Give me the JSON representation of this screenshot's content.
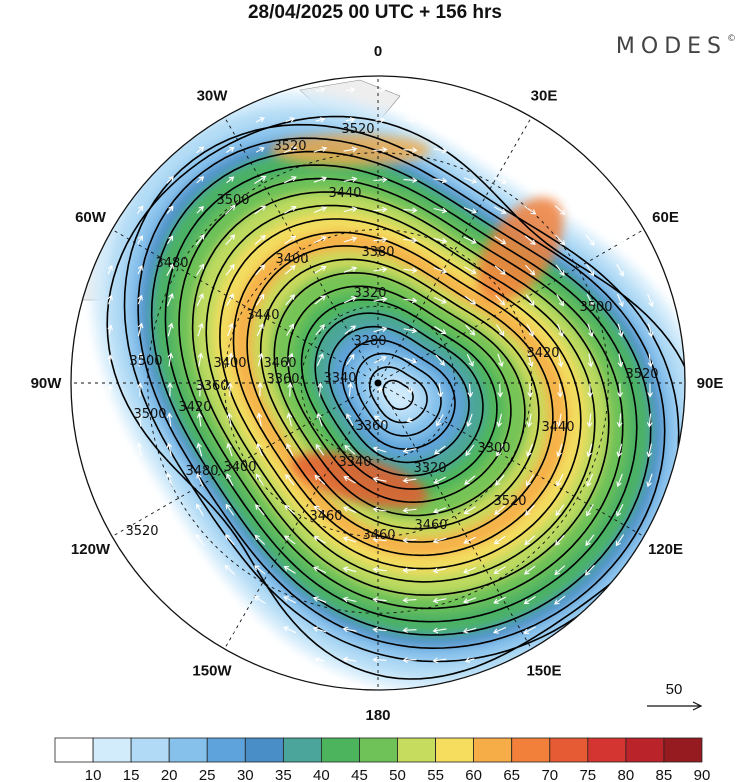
{
  "title": "28/04/2025  00 UTC  + 156 hrs",
  "brand": "MODES",
  "brand_mark": "©",
  "longitude_labels": [
    {
      "text": "0",
      "deg": 0
    },
    {
      "text": "30E",
      "deg": 30
    },
    {
      "text": "60E",
      "deg": 60
    },
    {
      "text": "90E",
      "deg": 90
    },
    {
      "text": "120E",
      "deg": 120
    },
    {
      "text": "150E",
      "deg": 150
    },
    {
      "text": "180",
      "deg": 180
    },
    {
      "text": "150W",
      "deg": 210
    },
    {
      "text": "120W",
      "deg": 240
    },
    {
      "text": "90W",
      "deg": 270
    },
    {
      "text": "60W",
      "deg": 300
    },
    {
      "text": "30W",
      "deg": 330
    }
  ],
  "height_contour_labels": [
    "3520",
    "3520",
    "3500",
    "3440",
    "3380",
    "3480",
    "3400",
    "3320",
    "3440",
    "3280",
    "3500",
    "3420",
    "3400",
    "3460",
    "3500",
    "3360",
    "3340",
    "3520",
    "3500",
    "3420",
    "3360",
    "3440",
    "3360",
    "3340",
    "3320",
    "3300",
    "3400",
    "3480",
    "3460",
    "3460",
    "3460",
    "3520",
    "3520"
  ],
  "wind_reference": {
    "value": "50"
  },
  "colorbar": {
    "ticks": [
      "10",
      "15",
      "20",
      "25",
      "30",
      "35",
      "40",
      "45",
      "50",
      "55",
      "60",
      "65",
      "70",
      "75",
      "80",
      "85",
      "90"
    ],
    "colors": [
      "#ffffff",
      "#d2ecfb",
      "#b0daf5",
      "#86c1ec",
      "#5fa3dd",
      "#4a8ec8",
      "#4ba59b",
      "#4cb45c",
      "#6fc257",
      "#c6dc5e",
      "#f6dd5e",
      "#f6ac47",
      "#f2803a",
      "#e65b33",
      "#d53530",
      "#bb232b",
      "#951b20"
    ]
  },
  "colors": {
    "land": "#eeeeee",
    "ocean": "#ffffff",
    "contour": "#000000",
    "vector": "#ffffff"
  }
}
